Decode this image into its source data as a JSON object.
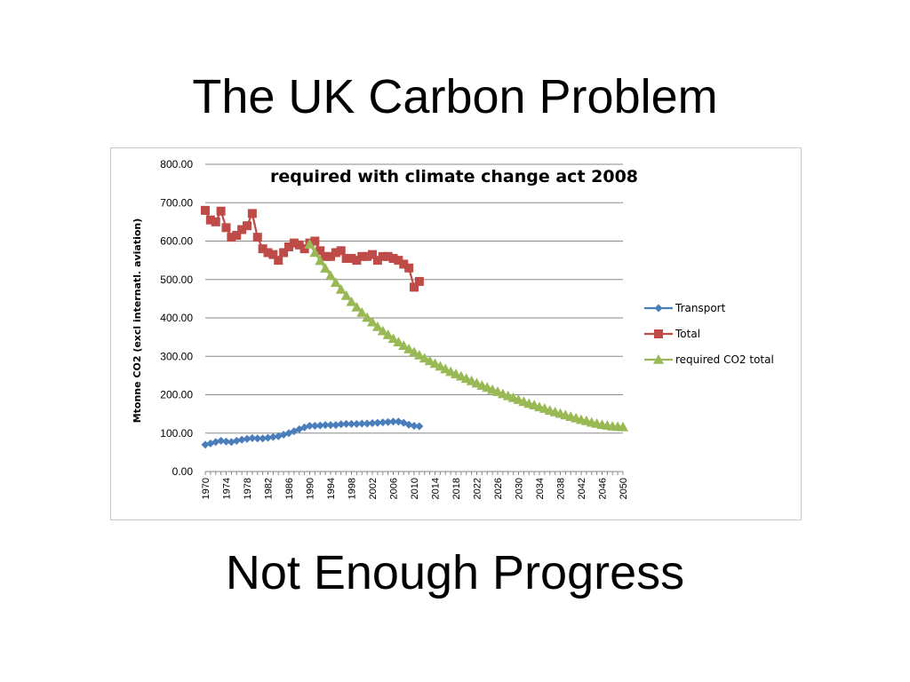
{
  "slide": {
    "title": "The UK Carbon Problem",
    "subtitle": "Not Enough Progress"
  },
  "chart_data": {
    "type": "line",
    "title": "required with climate change act 2008",
    "xlabel": "",
    "ylabel": "Mtonne CO2 (excl internatl. aviation)",
    "ylim": [
      0,
      800
    ],
    "xlim": [
      1970,
      2050
    ],
    "y_ticks": [
      "0.00",
      "100.00",
      "200.00",
      "300.00",
      "400.00",
      "500.00",
      "600.00",
      "700.00",
      "800.00"
    ],
    "x_ticks": [
      "1970",
      "1974",
      "1978",
      "1982",
      "1986",
      "1990",
      "1994",
      "1998",
      "2002",
      "2006",
      "2010",
      "2014",
      "2018",
      "2022",
      "2026",
      "2030",
      "2034",
      "2038",
      "2042",
      "2046",
      "2050"
    ],
    "grid": true,
    "legend_position": "right",
    "series": [
      {
        "name": "Transport",
        "color": "#4a7ebb",
        "marker": "diamond",
        "x": [
          1970,
          1971,
          1972,
          1973,
          1974,
          1975,
          1976,
          1977,
          1978,
          1979,
          1980,
          1981,
          1982,
          1983,
          1984,
          1985,
          1986,
          1987,
          1988,
          1989,
          1990,
          1991,
          1992,
          1993,
          1994,
          1995,
          1996,
          1997,
          1998,
          1999,
          2000,
          2001,
          2002,
          2003,
          2004,
          2005,
          2006,
          2007,
          2008,
          2009,
          2010,
          2011
        ],
        "values": [
          70,
          73,
          77,
          80,
          78,
          77,
          80,
          83,
          85,
          87,
          86,
          86,
          88,
          90,
          92,
          96,
          100,
          105,
          110,
          115,
          119,
          119,
          120,
          121,
          121,
          121,
          123,
          124,
          124,
          124,
          125,
          125,
          126,
          127,
          128,
          129,
          130,
          130,
          127,
          122,
          119,
          118
        ]
      },
      {
        "name": "Total",
        "color": "#be4b48",
        "marker": "square",
        "x": [
          1970,
          1971,
          1972,
          1973,
          1974,
          1975,
          1976,
          1977,
          1978,
          1979,
          1980,
          1981,
          1982,
          1983,
          1984,
          1985,
          1986,
          1987,
          1988,
          1989,
          1990,
          1991,
          1992,
          1993,
          1994,
          1995,
          1996,
          1997,
          1998,
          1999,
          2000,
          2001,
          2002,
          2003,
          2004,
          2005,
          2006,
          2007,
          2008,
          2009,
          2010,
          2011
        ],
        "values": [
          680,
          655,
          650,
          678,
          635,
          610,
          615,
          630,
          640,
          672,
          610,
          580,
          570,
          565,
          550,
          570,
          585,
          595,
          590,
          580,
          595,
          600,
          575,
          560,
          560,
          570,
          575,
          555,
          555,
          550,
          560,
          560,
          565,
          550,
          560,
          560,
          555,
          550,
          540,
          530,
          480,
          495
        ]
      },
      {
        "name": "required CO2 total",
        "color": "#98b954",
        "marker": "triangle",
        "x": [
          1990,
          1991,
          1992,
          1993,
          1994,
          1995,
          1996,
          1997,
          1998,
          1999,
          2000,
          2001,
          2002,
          2003,
          2004,
          2005,
          2006,
          2007,
          2008,
          2009,
          2010,
          2011,
          2012,
          2013,
          2014,
          2015,
          2016,
          2017,
          2018,
          2019,
          2020,
          2021,
          2022,
          2023,
          2024,
          2025,
          2026,
          2027,
          2028,
          2029,
          2030,
          2031,
          2032,
          2033,
          2034,
          2035,
          2036,
          2037,
          2038,
          2039,
          2040,
          2041,
          2042,
          2043,
          2044,
          2045,
          2046,
          2047,
          2048,
          2049,
          2050
        ],
        "values": [
          592,
          570,
          549,
          529,
          510,
          492,
          474,
          458,
          442,
          428,
          414,
          401,
          389,
          377,
          366,
          356,
          346,
          337,
          328,
          319,
          311,
          303,
          295,
          288,
          281,
          274,
          267,
          260,
          254,
          248,
          242,
          236,
          230,
          224,
          219,
          213,
          208,
          202,
          197,
          192,
          187,
          182,
          177,
          173,
          168,
          164,
          159,
          155,
          151,
          147,
          143,
          139,
          135,
          132,
          128,
          125,
          122,
          120,
          118,
          117,
          116
        ]
      }
    ]
  }
}
